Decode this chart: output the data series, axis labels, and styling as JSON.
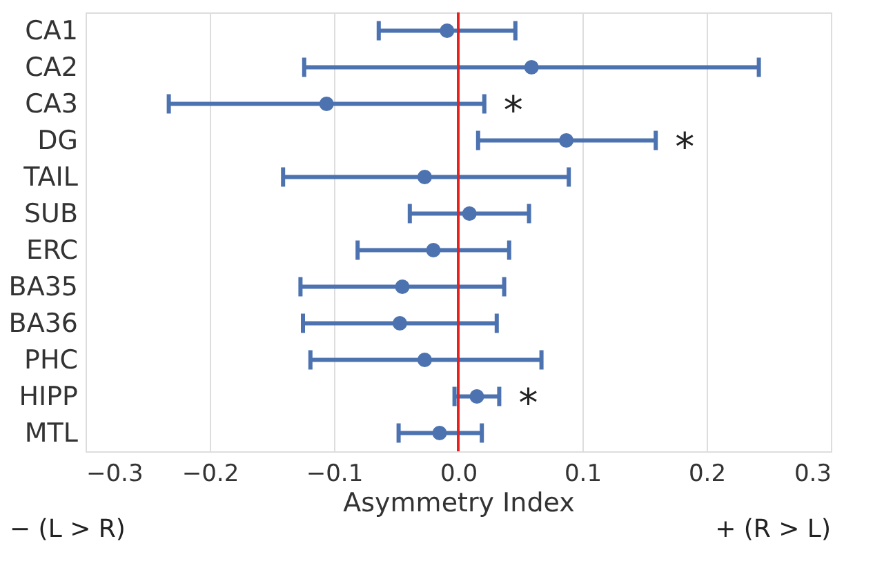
{
  "chart_data": {
    "type": "scatter",
    "orientation": "horizontal",
    "xlabel": "Asymmetry Index",
    "categories": [
      "CA1",
      "CA2",
      "CA3",
      "DG",
      "TAIL",
      "SUB",
      "ERC",
      "BA35",
      "BA36",
      "PHC",
      "HIPP",
      "MTL"
    ],
    "series": [
      {
        "color": "#4c72b0",
        "values": [
          -0.009,
          0.059,
          -0.106,
          0.087,
          -0.027,
          0.009,
          -0.02,
          -0.045,
          -0.047,
          -0.027,
          0.015,
          -0.015
        ],
        "errors": [
          [
            -0.064,
            0.046
          ],
          [
            -0.124,
            0.242
          ],
          [
            -0.233,
            0.021
          ],
          [
            0.016,
            0.159
          ],
          [
            -0.141,
            0.089
          ],
          [
            -0.039,
            0.057
          ],
          [
            -0.081,
            0.041
          ],
          [
            -0.127,
            0.037
          ],
          [
            -0.125,
            0.031
          ],
          [
            -0.119,
            0.067
          ],
          [
            -0.003,
            0.033
          ],
          [
            -0.048,
            0.019
          ]
        ]
      }
    ],
    "xlim": [
      -0.3,
      0.3
    ],
    "xticks": [
      {
        "value": -0.3,
        "label": "−0.3"
      },
      {
        "value": -0.2,
        "label": "−0.2"
      },
      {
        "value": -0.1,
        "label": "−0.1"
      },
      {
        "value": 0,
        "label": "0.0"
      },
      0.1,
      0.2,
      0.3
    ],
    "ref_lines": [
      {
        "axis": "x",
        "value": 0,
        "color": "#e8211e"
      }
    ],
    "annotations": [
      {
        "text": "*",
        "x": 0.021,
        "y": "CA3"
      },
      {
        "text": "*",
        "x": 0.159,
        "y": "DG"
      },
      {
        "text": "*",
        "x": 0.033,
        "y": "HIPP"
      },
      "− (L > R)",
      "+ (R > L)"
    ],
    "grid": "x",
    "marker": "circle"
  }
}
